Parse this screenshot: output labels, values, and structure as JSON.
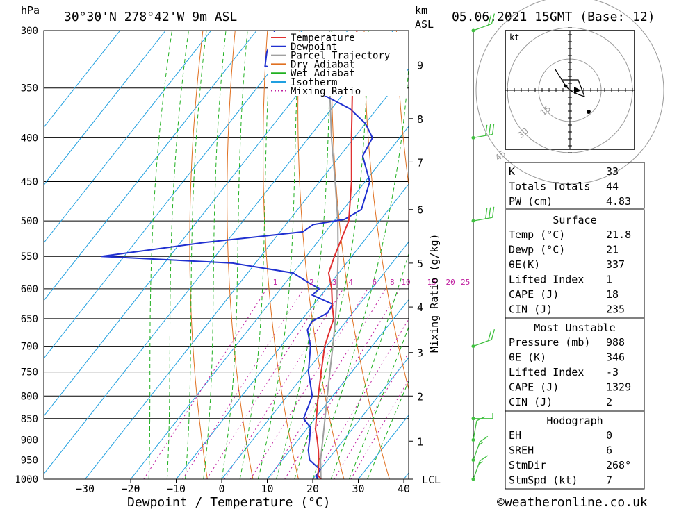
{
  "header": {
    "pressure_unit": "hPa",
    "height_unit_km": "km",
    "height_unit_asl": "ASL",
    "location": "30°30'N 278°42'W 9m ASL",
    "datetime": "05.06.2021 15GMT (Base: 12)"
  },
  "footer": {
    "credit": "©weatheronline.co.uk",
    "xlabel": "Dewpoint / Temperature (°C)",
    "mixing_ratio_label": "Mixing Ratio (g/kg)",
    "lcl_label": "LCL"
  },
  "colors": {
    "temperature": "#e03030",
    "dewpoint": "#2030d0",
    "parcel": "#a0a0a0",
    "dry_adiabat": "#e07020",
    "wet_adiabat": "#20b020",
    "isotherm": "#20a0e0",
    "mixing_ratio": "#c020a0",
    "wind": "#40c040"
  },
  "legend": [
    {
      "label": "Temperature",
      "color": "#e03030",
      "style": "solid"
    },
    {
      "label": "Dewpoint",
      "color": "#2030d0",
      "style": "solid"
    },
    {
      "label": "Parcel Trajectory",
      "color": "#a0a0a0",
      "style": "solid"
    },
    {
      "label": "Dry Adiabat",
      "color": "#e07020",
      "style": "solid"
    },
    {
      "label": "Wet Adiabat",
      "color": "#20b020",
      "style": "solid"
    },
    {
      "label": "Isotherm",
      "color": "#20a0e0",
      "style": "solid"
    },
    {
      "label": "Mixing Ratio",
      "color": "#c020a0",
      "style": "dotted"
    }
  ],
  "chart_data": {
    "type": "line",
    "title": "",
    "xlabel": "Dewpoint / Temperature (°C)",
    "ylabel": "hPa",
    "xlim": [
      -40,
      40
    ],
    "ylim": [
      1000,
      300
    ],
    "y_scale": "log",
    "pressure_ticks": [
      300,
      350,
      400,
      450,
      500,
      550,
      600,
      650,
      700,
      750,
      800,
      850,
      900,
      950,
      1000
    ],
    "temperature_ticks": [
      -30,
      -20,
      -10,
      0,
      10,
      20,
      30,
      40
    ],
    "km_ticks": [
      {
        "label": "9",
        "p": 329
      },
      {
        "label": "8",
        "p": 380
      },
      {
        "label": "7",
        "p": 427
      },
      {
        "label": "6",
        "p": 485
      },
      {
        "label": "5",
        "p": 560
      },
      {
        "label": "4",
        "p": 630
      },
      {
        "label": "3",
        "p": 712
      },
      {
        "label": "2",
        "p": 800
      },
      {
        "label": "1",
        "p": 903
      },
      {
        "label": "LCL",
        "p": 1000
      }
    ],
    "mixing_ratio_ticks": [
      {
        "label": "1",
        "t": -21.2
      },
      {
        "label": "2",
        "t": -13.2
      },
      {
        "label": "3",
        "t": -8.2
      },
      {
        "label": "4",
        "t": -4.6
      },
      {
        "label": "6",
        "t": 0.6
      },
      {
        "label": "8",
        "t": 4.5
      },
      {
        "label": "10",
        "t": 7.5
      },
      {
        "label": "15",
        "t": 13.2
      },
      {
        "label": "20",
        "t": 17.3
      },
      {
        "label": "25",
        "t": 20.6
      }
    ],
    "isotherms": [
      -100,
      -90,
      -80,
      -70,
      -60,
      -50,
      -40,
      -30,
      -20,
      -10,
      0,
      10,
      20,
      30,
      40
    ],
    "dry_adiabats_theta_K": [
      270,
      280,
      290,
      300,
      310,
      320,
      330,
      340,
      350,
      360,
      370,
      380,
      390,
      400,
      410,
      420,
      430,
      440
    ],
    "wet_adiabats_C": [
      -16,
      -12,
      -8,
      -4,
      0,
      4,
      8,
      12,
      16,
      20,
      24,
      28,
      32
    ],
    "series": [
      {
        "name": "Temperature",
        "points": [
          {
            "p": 1000,
            "t": 21.8
          },
          {
            "p": 990,
            "t": 20.5
          },
          {
            "p": 975,
            "t": 19.6
          },
          {
            "p": 950,
            "t": 18.0
          },
          {
            "p": 925,
            "t": 16.2
          },
          {
            "p": 900,
            "t": 14.2
          },
          {
            "p": 875,
            "t": 12.0
          },
          {
            "p": 850,
            "t": 10.3
          },
          {
            "p": 800,
            "t": 6.8
          },
          {
            "p": 750,
            "t": 3.3
          },
          {
            "p": 700,
            "t": -0.4
          },
          {
            "p": 650,
            "t": -3.2
          },
          {
            "p": 630,
            "t": -5.5
          },
          {
            "p": 600,
            "t": -8.8
          },
          {
            "p": 575,
            "t": -12.2
          },
          {
            "p": 550,
            "t": -13.8
          },
          {
            "p": 500,
            "t": -16.8
          },
          {
            "p": 450,
            "t": -23.0
          },
          {
            "p": 400,
            "t": -30.6
          },
          {
            "p": 350,
            "t": -39.0
          },
          {
            "p": 320,
            "t": -43.8
          },
          {
            "p": 300,
            "t": -48.0
          }
        ]
      },
      {
        "name": "Dewpoint",
        "points": [
          {
            "p": 1000,
            "t": 21.0
          },
          {
            "p": 990,
            "t": 20.2
          },
          {
            "p": 975,
            "t": 20.0
          },
          {
            "p": 950,
            "t": 16.0
          },
          {
            "p": 925,
            "t": 14.0
          },
          {
            "p": 900,
            "t": 12.5
          },
          {
            "p": 870,
            "t": 10.5
          },
          {
            "p": 850,
            "t": 7.5
          },
          {
            "p": 800,
            "t": 5.5
          },
          {
            "p": 750,
            "t": 0.5
          },
          {
            "p": 700,
            "t": -3.5
          },
          {
            "p": 670,
            "t": -7.0
          },
          {
            "p": 655,
            "t": -7.5
          },
          {
            "p": 640,
            "t": -5.5
          },
          {
            "p": 625,
            "t": -6.0
          },
          {
            "p": 610,
            "t": -12.0
          },
          {
            "p": 600,
            "t": -11.5
          },
          {
            "p": 590,
            "t": -15.0
          },
          {
            "p": 575,
            "t": -20.0
          },
          {
            "p": 560,
            "t": -35.0
          },
          {
            "p": 550,
            "t": -65.0
          },
          {
            "p": 530,
            "t": -45.0
          },
          {
            "p": 515,
            "t": -25.0
          },
          {
            "p": 505,
            "t": -24.0
          },
          {
            "p": 498,
            "t": -18.0
          },
          {
            "p": 485,
            "t": -16.0
          },
          {
            "p": 450,
            "t": -19.0
          },
          {
            "p": 420,
            "t": -25.0
          },
          {
            "p": 400,
            "t": -26.0
          },
          {
            "p": 385,
            "t": -30.0
          },
          {
            "p": 370,
            "t": -36.0
          },
          {
            "p": 352,
            "t": -47.0
          },
          {
            "p": 340,
            "t": -48.0
          },
          {
            "p": 330,
            "t": -62.0
          },
          {
            "p": 318,
            "t": -64.0
          },
          {
            "p": 300,
            "t": -66.0
          }
        ]
      },
      {
        "name": "Parcel Trajectory",
        "points": [
          {
            "p": 1000,
            "t": 21.8
          },
          {
            "p": 950,
            "t": 18.4
          },
          {
            "p": 900,
            "t": 15.4
          },
          {
            "p": 850,
            "t": 12.2
          },
          {
            "p": 800,
            "t": 8.8
          },
          {
            "p": 750,
            "t": 5.2
          },
          {
            "p": 700,
            "t": 1.4
          },
          {
            "p": 650,
            "t": -2.8
          },
          {
            "p": 600,
            "t": -7.6
          },
          {
            "p": 550,
            "t": -13.0
          },
          {
            "p": 500,
            "t": -19.2
          },
          {
            "p": 450,
            "t": -26.6
          },
          {
            "p": 400,
            "t": -35.0
          },
          {
            "p": 350,
            "t": -44.0
          },
          {
            "p": 300,
            "t": -54.0
          }
        ]
      }
    ],
    "wind_barbs": [
      {
        "p": 300,
        "dir": 250,
        "spd": 20
      },
      {
        "p": 400,
        "dir": 260,
        "spd": 30
      },
      {
        "p": 500,
        "dir": 260,
        "spd": 30
      },
      {
        "p": 700,
        "dir": 250,
        "spd": 20
      },
      {
        "p": 850,
        "dir": 270,
        "spd": 5
      },
      {
        "p": 900,
        "dir": 190,
        "spd": 10
      },
      {
        "p": 950,
        "dir": 200,
        "spd": 15
      },
      {
        "p": 1000,
        "dir": 200,
        "spd": 15
      }
    ]
  },
  "hodograph": {
    "unit": "kt",
    "ring_labels": [
      "15",
      "30",
      "45"
    ],
    "points": [
      [
        -7,
        10
      ],
      [
        -2,
        2
      ],
      [
        0,
        0
      ],
      [
        4,
        -2
      ],
      [
        7,
        -3
      ],
      [
        4,
        5
      ],
      [
        -4,
        5
      ]
    ],
    "storm_motion": [
      2,
      0
    ]
  },
  "stats": {
    "general": [
      {
        "label": "K",
        "value": "33"
      },
      {
        "label": "Totals Totals",
        "value": "44"
      },
      {
        "label": "PW (cm)",
        "value": "4.83"
      }
    ],
    "surface": {
      "title": "Surface",
      "rows": [
        {
          "label": "Temp (°C)",
          "value": "21.8"
        },
        {
          "label": "Dewp (°C)",
          "value": "21"
        },
        {
          "label": "θE(K)",
          "value": "337"
        },
        {
          "label": "Lifted Index",
          "value": "1"
        },
        {
          "label": "CAPE (J)",
          "value": "18"
        },
        {
          "label": "CIN (J)",
          "value": "235"
        }
      ]
    },
    "most_unstable": {
      "title": "Most Unstable",
      "rows": [
        {
          "label": "Pressure (mb)",
          "value": "988"
        },
        {
          "label": "θE (K)",
          "value": "346"
        },
        {
          "label": "Lifted Index",
          "value": "-3"
        },
        {
          "label": "CAPE (J)",
          "value": "1329"
        },
        {
          "label": "CIN (J)",
          "value": "2"
        }
      ]
    },
    "hodograph_box": {
      "title": "Hodograph",
      "rows": [
        {
          "label": "EH",
          "value": "0"
        },
        {
          "label": "SREH",
          "value": "6"
        },
        {
          "label": "StmDir",
          "value": "268°"
        },
        {
          "label": "StmSpd (kt)",
          "value": "7"
        }
      ]
    }
  }
}
